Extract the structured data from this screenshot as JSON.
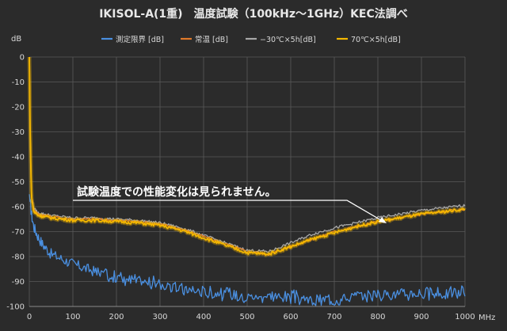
{
  "chart_data": {
    "type": "line",
    "title": "IKISOL-A(1重)　温度試験（100kHz～1GHz）KEC法調べ",
    "ylabel": "dB",
    "xlabel": "MHz",
    "xlim": [
      0,
      1000
    ],
    "ylim": [
      -100,
      0
    ],
    "x_ticks": [
      0,
      100,
      200,
      300,
      400,
      500,
      600,
      700,
      800,
      900,
      1000
    ],
    "y_ticks": [
      0,
      -10,
      -20,
      -30,
      -40,
      -50,
      -60,
      -70,
      -80,
      -90,
      -100
    ],
    "grid": true,
    "legend_position": "top",
    "annotation": "試験温度での性能変化は見られません。",
    "colors": {
      "background": "#2b2b2b",
      "grid": "#5a5a5a",
      "text": "#d8d8d8",
      "title": "#e8e8e8"
    },
    "series": [
      {
        "name": "測定限界 [dB]",
        "color": "#4a8fe0",
        "x": [
          0.1,
          5,
          10,
          20,
          30,
          50,
          75,
          100,
          150,
          200,
          250,
          300,
          350,
          400,
          450,
          500,
          550,
          600,
          650,
          700,
          750,
          800,
          850,
          900,
          950,
          1000
        ],
        "y": [
          -55,
          -63,
          -68,
          -72,
          -75,
          -79,
          -81,
          -83,
          -86,
          -88,
          -90,
          -91,
          -93,
          -94,
          -95,
          -96,
          -96,
          -96,
          -98,
          -97,
          -96,
          -95,
          -95,
          -95,
          -95,
          -94
        ]
      },
      {
        "name": "常温 [dB]",
        "color": "#e07a2a",
        "x": [
          0.1,
          2,
          5,
          10,
          20,
          50,
          100,
          150,
          200,
          250,
          300,
          350,
          400,
          450,
          500,
          550,
          600,
          650,
          700,
          750,
          800,
          850,
          900,
          950,
          1000
        ],
        "y": [
          0,
          -30,
          -55,
          -61,
          -63,
          -64,
          -65,
          -65,
          -65.5,
          -66,
          -67,
          -69,
          -72,
          -75,
          -78,
          -79,
          -76,
          -73,
          -70,
          -68,
          -66,
          -64.5,
          -63,
          -62,
          -61
        ]
      },
      {
        "name": "−30℃×5h[dB]",
        "color": "#a8a8a8",
        "x": [
          0.1,
          2,
          5,
          10,
          20,
          50,
          100,
          150,
          200,
          250,
          300,
          350,
          400,
          450,
          500,
          550,
          600,
          650,
          700,
          750,
          800,
          850,
          900,
          950,
          1000
        ],
        "y": [
          0,
          -30,
          -55,
          -60.5,
          -62.5,
          -63.5,
          -64.5,
          -64.5,
          -65,
          -65.5,
          -66.5,
          -68.5,
          -71.5,
          -74.5,
          -77.5,
          -78,
          -74.5,
          -71,
          -68.5,
          -66.5,
          -64.5,
          -63,
          -61.5,
          -60.5,
          -59.5
        ]
      },
      {
        "name": "70℃×5h[dB]",
        "color": "#f5b800",
        "x": [
          0.1,
          2,
          5,
          10,
          20,
          50,
          100,
          150,
          200,
          250,
          300,
          350,
          400,
          450,
          500,
          550,
          600,
          650,
          700,
          750,
          800,
          850,
          900,
          950,
          1000
        ],
        "y": [
          0,
          -30,
          -56,
          -62,
          -63.5,
          -64.5,
          -65.5,
          -65.5,
          -66,
          -66.5,
          -67.5,
          -69.5,
          -72.5,
          -75.5,
          -78.5,
          -79,
          -76,
          -73,
          -70.5,
          -68,
          -66,
          -64.5,
          -63,
          -62,
          -61
        ]
      }
    ]
  }
}
